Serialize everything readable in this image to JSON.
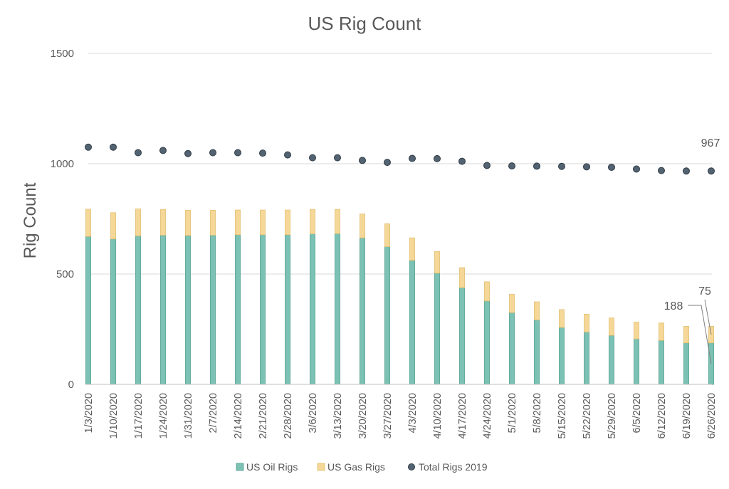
{
  "chart_data": {
    "type": "bar",
    "title": "US Rig Count",
    "ylabel": "Rig Count",
    "xlabel": "",
    "ylim": [
      0,
      1500
    ],
    "yticks": [
      0,
      500,
      1000,
      1500
    ],
    "grid": true,
    "legend_position": "bottom",
    "categories": [
      "1/3/2020",
      "1/10/2020",
      "1/17/2020",
      "1/24/2020",
      "1/31/2020",
      "2/7/2020",
      "2/14/2020",
      "2/21/2020",
      "2/28/2020",
      "3/6/2020",
      "3/13/2020",
      "3/20/2020",
      "3/27/2020",
      "4/3/2020",
      "4/10/2020",
      "4/17/2020",
      "4/24/2020",
      "5/1/2020",
      "5/8/2020",
      "5/15/2020",
      "5/22/2020",
      "5/29/2020",
      "6/5/2020",
      "6/12/2020",
      "6/19/2020",
      "6/26/2020"
    ],
    "series": [
      {
        "name": "US Oil Rigs",
        "kind": "bar-stacked",
        "color": "#7cc2b4",
        "values": [
          670,
          659,
          673,
          676,
          675,
          676,
          678,
          678,
          678,
          682,
          683,
          664,
          624,
          562,
          504,
          438,
          378,
          325,
          292,
          258,
          237,
          222,
          206,
          199,
          188,
          188
        ]
      },
      {
        "name": "US Gas Rigs",
        "kind": "bar-stacked",
        "color": "#f5d898",
        "values": [
          124,
          119,
          122,
          117,
          114,
          113,
          112,
          112,
          112,
          111,
          110,
          108,
          104,
          102,
          98,
          91,
          87,
          83,
          82,
          81,
          81,
          79,
          76,
          79,
          75,
          75
        ]
      },
      {
        "name": "Total Rigs 2019",
        "kind": "scatter",
        "color": "#546371",
        "values": [
          1075,
          1075,
          1050,
          1060,
          1046,
          1050,
          1050,
          1048,
          1040,
          1027,
          1027,
          1015,
          1006,
          1024,
          1023,
          1011,
          992,
          990,
          989,
          988,
          986,
          984,
          976,
          969,
          967,
          967
        ]
      }
    ],
    "annotations": [
      {
        "text": "967",
        "series": "Total Rigs 2019",
        "category": "6/26/2020"
      },
      {
        "text": "75",
        "series": "US Gas Rigs",
        "category": "6/26/2020"
      },
      {
        "text": "188",
        "series": "US Oil Rigs",
        "category": "6/26/2020"
      }
    ],
    "colors": {
      "oil_fill": "#7cc2b4",
      "oil_stroke": "#4e9e8e",
      "gas_fill": "#f5d898",
      "gas_stroke": "#e2be6e",
      "dot_fill": "#546371",
      "dot_stroke": "#2d3a45"
    }
  }
}
